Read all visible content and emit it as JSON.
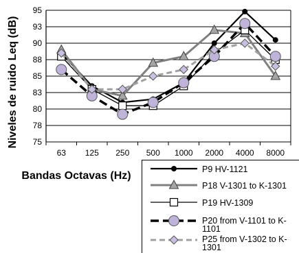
{
  "chart_data": {
    "type": "line",
    "title": "",
    "xlabel": "Bandas Octavas (Hz)",
    "ylabel": "Niveles de ruido Leq (dB)",
    "categories": [
      "63",
      "125",
      "250",
      "500",
      "1000",
      "2000",
      "4000",
      "8000"
    ],
    "ylim": [
      75,
      95
    ],
    "yticks": [
      "75",
      "78",
      "80",
      "83",
      "85",
      "88",
      "90",
      "93",
      "95"
    ],
    "ytick_values": [
      75,
      77.5,
      80,
      82.5,
      85,
      87.5,
      90,
      92.5,
      95
    ],
    "grid": true,
    "legend_position": "bottom-right",
    "series": [
      {
        "name": "P9 HV-1121",
        "values": [
          88.5,
          83.5,
          81.0,
          81.5,
          84.0,
          90.0,
          94.8,
          90.5
        ],
        "color": "#000000",
        "line": "solid",
        "marker": "filled-circle"
      },
      {
        "name": "P18 V-1301 to K-1301",
        "values": [
          89.0,
          83.0,
          82.0,
          87.0,
          88.0,
          92.0,
          91.5,
          85.0
        ],
        "color": "#808080",
        "line": "solid",
        "marker": "triangle"
      },
      {
        "name": "P19 HV-1309",
        "values": [
          88.0,
          83.0,
          80.5,
          80.5,
          83.5,
          88.5,
          92.0,
          87.5
        ],
        "color": "#000000",
        "line": "solid-thin",
        "marker": "open-square"
      },
      {
        "name": "P20 from V-1101 to K-1101",
        "values": [
          86.0,
          82.0,
          79.2,
          81.0,
          84.0,
          88.0,
          93.0,
          88.0
        ],
        "color": "#000000",
        "line": "dashed",
        "marker": "lilac-circle"
      },
      {
        "name": "P25 from V-1302 to K-1301",
        "values": [
          88.5,
          83.0,
          83.0,
          85.0,
          86.0,
          89.0,
          90.0,
          86.5
        ],
        "color": "#a0a0a0",
        "line": "dashed",
        "marker": "diamond"
      }
    ]
  }
}
